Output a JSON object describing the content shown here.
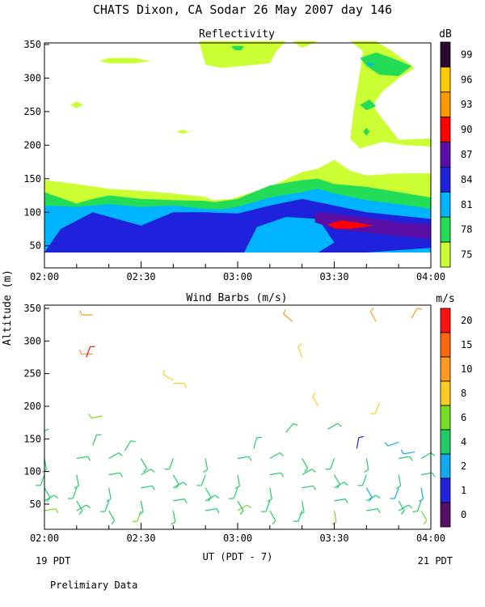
{
  "page": {
    "title": "CHATS Dixon, CA  Sodar  26 May 2007  day 146",
    "ylabel": "Altitude (m)",
    "xlabel": "UT  (PDT - 7)",
    "start_local": "19 PDT",
    "end_local": "21 PDT",
    "footnote": "Prelimiary Data"
  },
  "chart_data": [
    {
      "type": "heatmap",
      "title": "Reflectivity",
      "x_ticks": [
        "02:00",
        "02:30",
        "03:00",
        "03:30",
        "04:00"
      ],
      "xlim": [
        "02:00",
        "04:00"
      ],
      "ylim": [
        25,
        355
      ],
      "y_ticks": [
        50,
        100,
        150,
        200,
        250,
        300,
        350
      ],
      "colorbar": {
        "unit": "dB",
        "labels": [
          "99",
          "96",
          "93",
          "90",
          "87",
          "84",
          "81",
          "78",
          "75"
        ],
        "colors": [
          "#2b0a2b",
          "#ffcc00",
          "#ff9900",
          "#ff0000",
          "#5b0fa6",
          "#1e22dd",
          "#00b4ff",
          "#22dd55",
          "#ccff33"
        ]
      },
      "contour_fill_colors": {
        "75": "#ccff33",
        "78": "#22dd55",
        "81": "#00b4ff",
        "84": "#1e22dd",
        "87": "#5b0fa6",
        "90": "#ff0000"
      },
      "grid": false
    },
    {
      "type": "scatter",
      "title": "Wind Barbs (m/s)",
      "x_ticks": [
        "02:00",
        "02:30",
        "03:00",
        "03:30",
        "04:00"
      ],
      "xlim": [
        "02:00",
        "04:00"
      ],
      "ylim": [
        15,
        355
      ],
      "y_ticks": [
        50,
        100,
        150,
        200,
        250,
        300,
        350
      ],
      "colorbar": {
        "unit": "m/s",
        "labels": [
          "20",
          "15",
          "10",
          "8",
          "6",
          "4",
          "2",
          "1",
          "0"
        ],
        "colors": [
          "#ff1111",
          "#ff6611",
          "#ff9922",
          "#ffcc22",
          "#77dd22",
          "#22cc66",
          "#11aaee",
          "#2222dd",
          "#551166"
        ]
      },
      "grid": false
    }
  ]
}
